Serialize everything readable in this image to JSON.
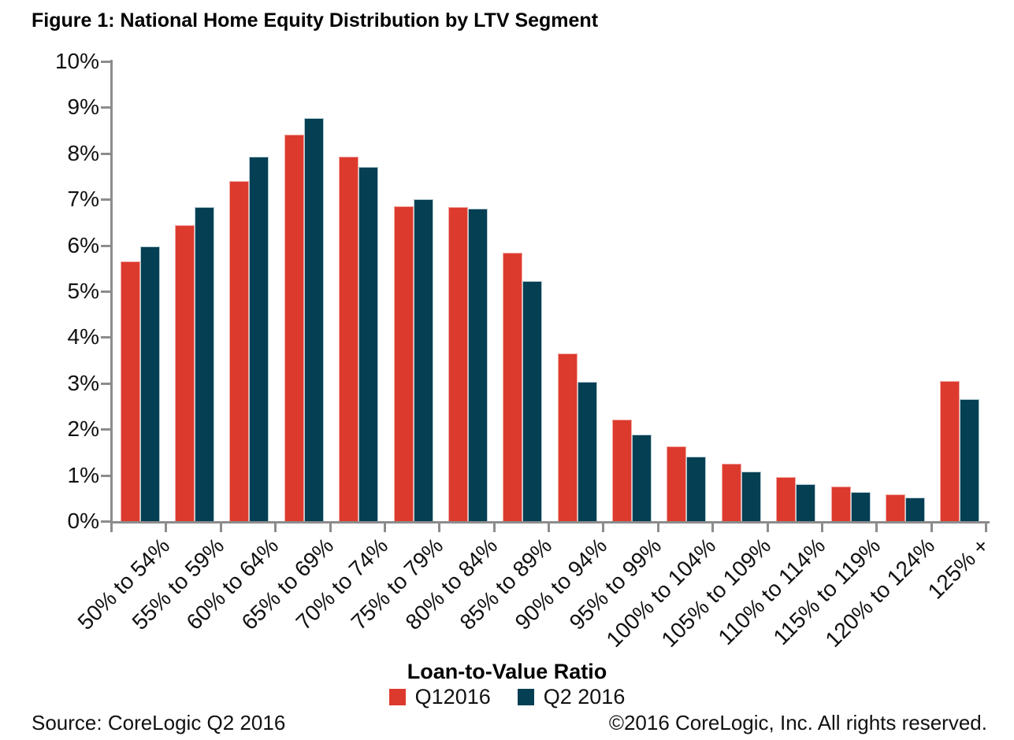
{
  "title": "Figure 1: National Home Equity Distribution by LTV Segment",
  "footer": {
    "source": "Source: CoreLogic Q2 2016",
    "copyright": "©2016 CoreLogic, Inc. All rights reserved."
  },
  "chart_data": {
    "type": "bar",
    "title": "Figure 1: National Home Equity Distribution by LTV Segment",
    "xlabel": "Loan-to-Value Ratio",
    "ylabel": "",
    "ylim": [
      0,
      10
    ],
    "ytick_step": 1,
    "ytick_labels": [
      "0%",
      "1%",
      "2%",
      "3%",
      "4%",
      "5%",
      "6%",
      "7%",
      "8%",
      "9%",
      "10%"
    ],
    "grid": false,
    "legend_position": "bottom",
    "axis_color": "#8c8c8c",
    "categories": [
      "50% to 54%",
      "55% to 59%",
      "60% to 64%",
      "65% to 69%",
      "70% to 74%",
      "75% to 79%",
      "80% to 84%",
      "85% to 89%",
      "90% to 94%",
      "95% to 99%",
      "100% to 104%",
      "105% to 109%",
      "110% to 114%",
      "115% to 119%",
      "120% to 124%",
      "125% +"
    ],
    "series": [
      {
        "name": "Q12016",
        "color": "#DD3A2E",
        "border_color": "#F2A9A2",
        "values": [
          5.65,
          6.44,
          7.4,
          8.41,
          7.93,
          6.85,
          6.83,
          5.84,
          3.65,
          2.21,
          1.62,
          1.25,
          0.96,
          0.75,
          0.58,
          3.05
        ]
      },
      {
        "name": "Q2 2016",
        "color": "#043F53",
        "border_color": "#B5CBD3",
        "values": [
          5.97,
          6.83,
          7.93,
          8.77,
          7.71,
          7.0,
          6.79,
          5.22,
          3.03,
          1.89,
          1.4,
          1.08,
          0.8,
          0.63,
          0.51,
          2.65
        ]
      }
    ]
  }
}
